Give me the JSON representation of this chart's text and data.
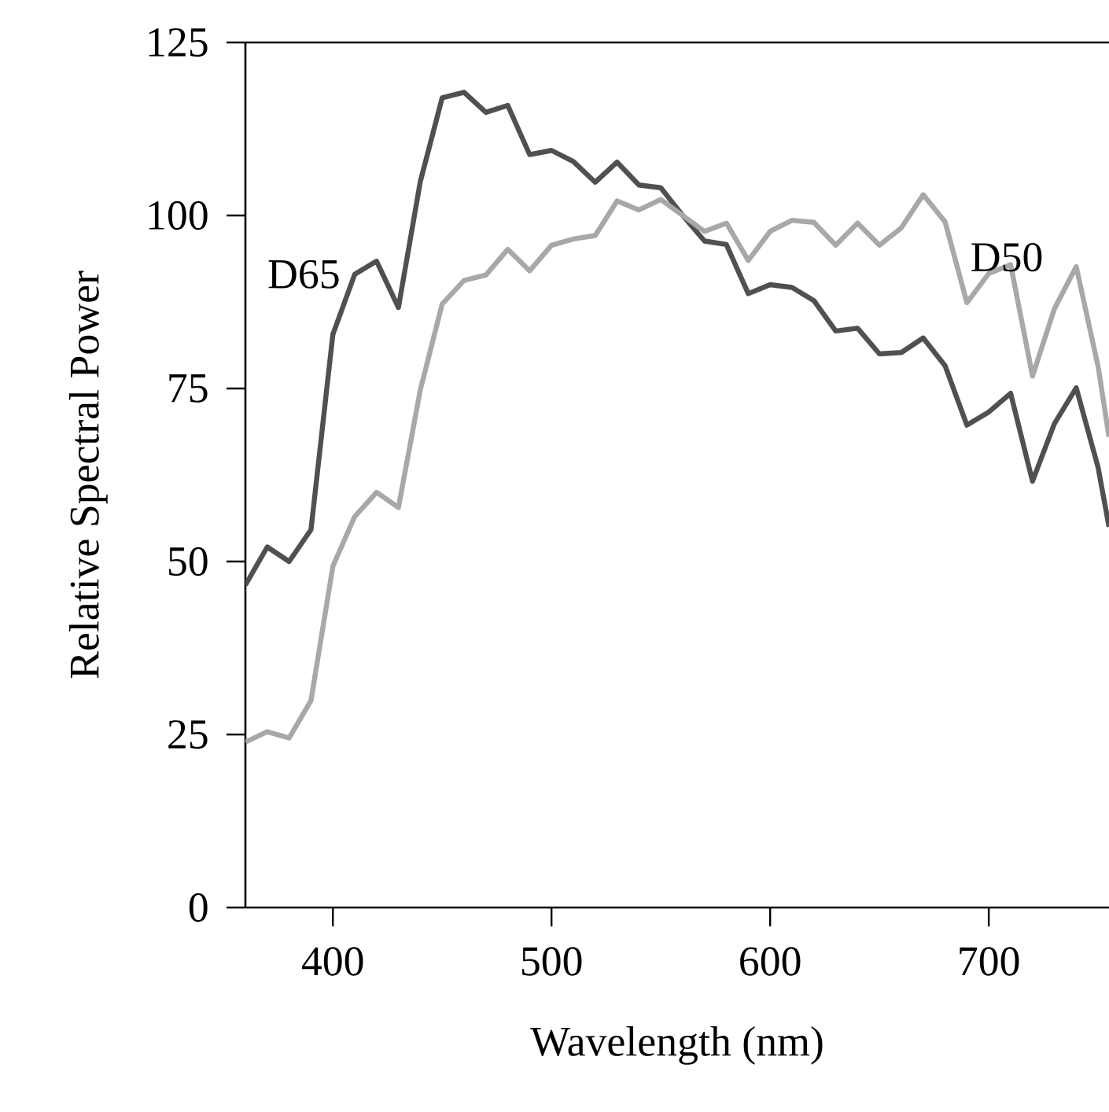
{
  "chart_data": {
    "type": "line",
    "xlabel": "Wavelength (nm)",
    "ylabel": "Relative Spectral Power",
    "x": [
      360,
      370,
      380,
      390,
      400,
      410,
      420,
      430,
      440,
      450,
      460,
      470,
      480,
      490,
      500,
      510,
      520,
      530,
      540,
      550,
      560,
      570,
      580,
      590,
      600,
      610,
      620,
      630,
      640,
      650,
      660,
      670,
      680,
      690,
      700,
      710,
      720,
      730,
      740,
      750,
      755
    ],
    "series": [
      {
        "name": "D65",
        "color": "#505050",
        "values": [
          46.6,
          52.1,
          50.0,
          54.6,
          82.8,
          91.5,
          93.4,
          86.7,
          104.9,
          117.0,
          117.8,
          114.9,
          115.9,
          108.8,
          109.4,
          107.8,
          104.8,
          107.7,
          104.4,
          104.0,
          100.0,
          96.3,
          95.8,
          88.7,
          90.0,
          89.6,
          87.7,
          83.3,
          83.7,
          80.0,
          80.2,
          82.3,
          78.3,
          69.7,
          71.6,
          74.3,
          61.6,
          69.9,
          75.1,
          63.6,
          55
        ]
      },
      {
        "name": "D50",
        "color": "#a8a8a8",
        "values": [
          23.9,
          25.4,
          24.5,
          29.9,
          49.3,
          56.5,
          60.0,
          57.8,
          74.8,
          87.2,
          90.6,
          91.4,
          95.1,
          92.0,
          95.7,
          96.6,
          97.1,
          102.1,
          100.8,
          102.3,
          100.0,
          97.7,
          98.9,
          93.5,
          97.7,
          99.3,
          99.0,
          95.7,
          98.9,
          95.7,
          98.2,
          103.0,
          99.1,
          87.4,
          91.6,
          92.9,
          76.8,
          86.5,
          92.6,
          78.2,
          68
        ]
      }
    ],
    "xlim": [
      360,
      755
    ],
    "ylim": [
      0,
      125
    ],
    "xticks": [
      400,
      500,
      600,
      700
    ],
    "yticks": [
      0,
      25,
      50,
      75,
      100,
      125
    ],
    "grid": false,
    "legend": false,
    "marker": "none",
    "line_style": "solid"
  }
}
